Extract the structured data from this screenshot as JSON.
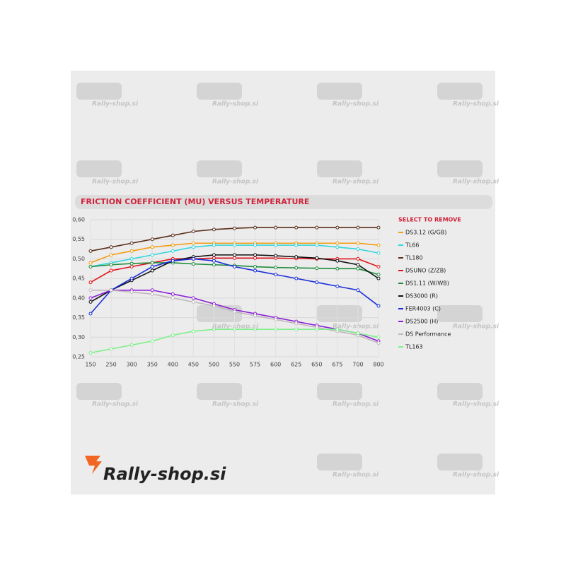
{
  "chart_data": {
    "type": "line",
    "title": "FRICTION COEFFICIENT (MU) VERSUS TEMPERATURE",
    "legend_title": "SELECT TO REMOVE",
    "brand": "Rally-shop.si",
    "categories": [
      "150",
      "250",
      "300",
      "350",
      "400",
      "450",
      "500",
      "550",
      "575",
      "600",
      "625",
      "650",
      "675",
      "700",
      "800"
    ],
    "ylim": [
      0.25,
      0.6
    ],
    "yticks": [
      {
        "value": 0.25,
        "label": "0,25"
      },
      {
        "value": 0.3,
        "label": "0,30"
      },
      {
        "value": 0.35,
        "label": "0,35"
      },
      {
        "value": 0.4,
        "label": "0,40"
      },
      {
        "value": 0.45,
        "label": "0,45"
      },
      {
        "value": 0.5,
        "label": "0,50"
      },
      {
        "value": 0.55,
        "label": "0,55"
      },
      {
        "value": 0.6,
        "label": "0,60"
      }
    ],
    "grid": true,
    "series": [
      {
        "name": "DS3.12 (G/GB)",
        "color": "#f39c12",
        "values": [
          0.49,
          0.51,
          0.52,
          0.53,
          0.535,
          0.54,
          0.54,
          0.54,
          0.54,
          0.54,
          0.54,
          0.54,
          0.54,
          0.54,
          0.535
        ]
      },
      {
        "name": "TL66",
        "color": "#34d6dc",
        "values": [
          0.48,
          0.49,
          0.5,
          0.51,
          0.52,
          0.53,
          0.535,
          0.535,
          0.535,
          0.535,
          0.535,
          0.535,
          0.53,
          0.525,
          0.515
        ]
      },
      {
        "name": "TL180",
        "color": "#5a2e1a",
        "values": [
          0.52,
          0.53,
          0.54,
          0.55,
          0.56,
          0.57,
          0.575,
          0.578,
          0.58,
          0.58,
          0.58,
          0.58,
          0.58,
          0.58,
          0.58
        ]
      },
      {
        "name": "DSUNO (Z/ZB)",
        "color": "#e0141e",
        "values": [
          0.44,
          0.47,
          0.48,
          0.49,
          0.5,
          0.5,
          0.502,
          0.502,
          0.502,
          0.502,
          0.501,
          0.5,
          0.5,
          0.5,
          0.48
        ]
      },
      {
        "name": "DS1.11 (W/WB)",
        "color": "#1e8c3c",
        "values": [
          0.48,
          0.485,
          0.488,
          0.49,
          0.49,
          0.487,
          0.485,
          0.483,
          0.48,
          0.478,
          0.477,
          0.476,
          0.475,
          0.475,
          0.46
        ]
      },
      {
        "name": "DS3000 (R)",
        "color": "#111111",
        "values": [
          0.39,
          0.42,
          0.445,
          0.47,
          0.495,
          0.505,
          0.51,
          0.51,
          0.51,
          0.508,
          0.505,
          0.502,
          0.495,
          0.485,
          0.45
        ]
      },
      {
        "name": "FER4003 (C)",
        "color": "#1a2ed8",
        "values": [
          0.36,
          0.42,
          0.45,
          0.48,
          0.495,
          0.5,
          0.495,
          0.48,
          0.47,
          0.46,
          0.45,
          0.44,
          0.43,
          0.42,
          0.38
        ]
      },
      {
        "name": "DS2500 (H)",
        "color": "#8a1fd6",
        "values": [
          0.4,
          0.42,
          0.42,
          0.42,
          0.41,
          0.4,
          0.385,
          0.37,
          0.36,
          0.35,
          0.34,
          0.33,
          0.32,
          0.31,
          0.29
        ]
      },
      {
        "name": "DS Performance",
        "color": "#c0b8bd",
        "values": [
          0.42,
          0.42,
          0.415,
          0.41,
          0.4,
          0.39,
          0.38,
          0.365,
          0.355,
          0.345,
          0.335,
          0.325,
          0.315,
          0.305,
          0.285
        ]
      },
      {
        "name": "TL163",
        "color": "#7ff08a",
        "values": [
          0.26,
          0.27,
          0.28,
          0.29,
          0.305,
          0.315,
          0.32,
          0.32,
          0.32,
          0.32,
          0.32,
          0.32,
          0.32,
          0.31,
          0.3
        ]
      }
    ]
  }
}
